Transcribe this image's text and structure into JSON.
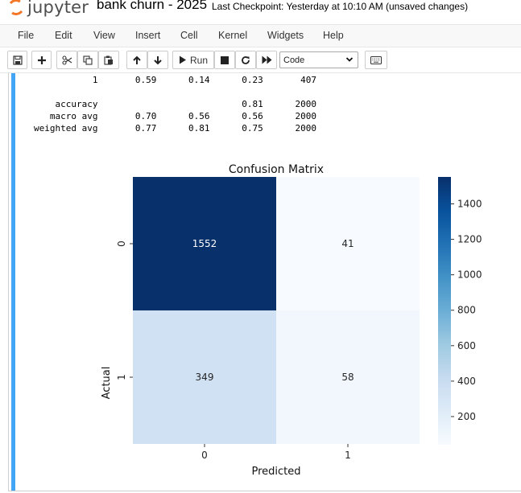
{
  "header": {
    "logo_text": "jupyter",
    "notebook_title": "bank churn - 2025",
    "checkpoint": "Last Checkpoint: Yesterday at 10:10 AM",
    "save_status": "(unsaved changes)"
  },
  "menu": {
    "items": [
      "File",
      "Edit",
      "View",
      "Insert",
      "Cell",
      "Kernel",
      "Widgets",
      "Help"
    ]
  },
  "toolbar": {
    "run_label": "Run",
    "cell_type": "Code",
    "icons": [
      "save-icon",
      "plus-icon",
      "cut-icon",
      "copy-icon",
      "paste-icon",
      "arrow-up-icon",
      "arrow-down-icon",
      "run-icon",
      "stop-icon",
      "restart-icon",
      "fast-forward-icon",
      "keyboard-icon"
    ]
  },
  "report": {
    "row1": "           1       0.59      0.14      0.23       407",
    "blank": "",
    "accuracy": "    accuracy                           0.81      2000",
    "macro": "   macro avg       0.70      0.56      0.56      2000",
    "weighted": "weighted avg       0.77      0.81      0.75      2000"
  },
  "chart_data": {
    "type": "heatmap",
    "title": "Confusion Matrix",
    "xlabel": "Predicted",
    "ylabel": "Actual",
    "x_categories": [
      "0",
      "1"
    ],
    "y_categories": [
      "0",
      "1"
    ],
    "values": [
      [
        1552,
        41
      ],
      [
        349,
        58
      ]
    ],
    "colormap": "Blues",
    "vmin": 41,
    "vmax": 1552,
    "colorbar_ticks": [
      200,
      400,
      600,
      800,
      1000,
      1200,
      1400
    ],
    "colors": {
      "cell_0_0": "#08306b",
      "cell_0_1": "#f7fbff",
      "cell_1_0": "#cfe1f2",
      "cell_1_1": "#f2f7fd"
    }
  }
}
